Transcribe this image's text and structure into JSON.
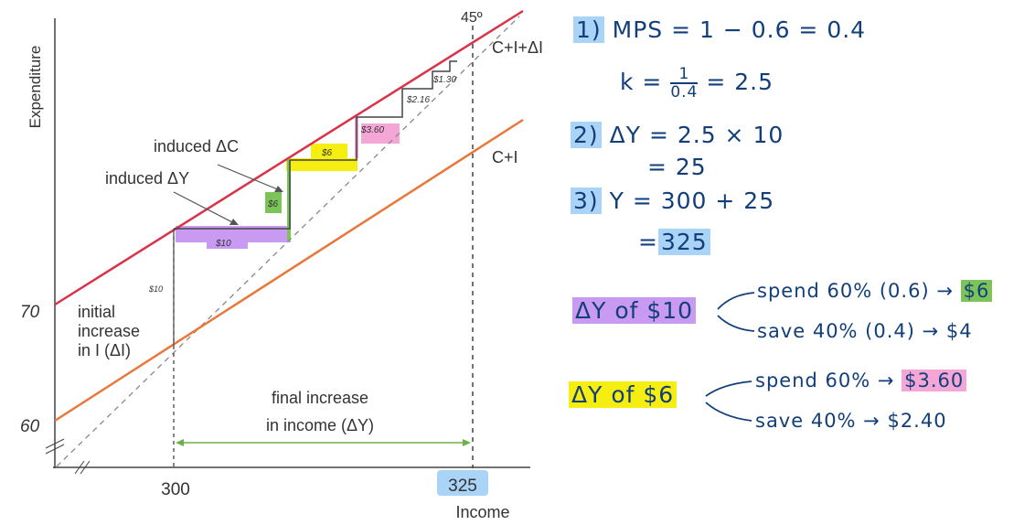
{
  "diagram": {
    "y_axis_label": "Expenditure",
    "x_axis_label": "Income",
    "y_ticks": [
      "70",
      "60"
    ],
    "x_ticks": [
      "300",
      "325"
    ],
    "angle_label": "45º",
    "line_labels": {
      "upper": "C+I+ΔI",
      "lower": "C+I"
    },
    "annotations": {
      "induced_c": "induced ΔC",
      "induced_y": "induced ΔY",
      "initial_1": "initial",
      "initial_2": "increase",
      "initial_3": "in I (ΔI)",
      "initial_amount": "$10",
      "final_1": "final increase",
      "final_2": "in income (ΔY)"
    },
    "steps": [
      "$10",
      "$6",
      "$6",
      "$3.60",
      "$2.16",
      "$1.30"
    ],
    "colors": {
      "upper_line": "#d9334a",
      "lower_line": "#e8773a",
      "purple": "#c89af2",
      "green": "#7cc45a",
      "yellow": "#f5ee10",
      "pink": "#f4a6d6",
      "blue": "#a9d4f7",
      "ink": "#123f7a"
    }
  },
  "notes": {
    "n1_num": "1)",
    "n1": "MPS = 1 − 0.6 = 0.4",
    "k_prefix": "k =",
    "k_num": "1",
    "k_den": "0.4",
    "k_result": "= 2.5",
    "n2_num": "2)",
    "n2": "ΔY = 2.5 × 10",
    "n2b": "= 25",
    "n3_num": "3)",
    "n3": "Y = 300 + 25",
    "n3b_eq": "=",
    "n3b": "325",
    "dy10": "ΔY of $10",
    "spend1": "spend 60% (0.6) →",
    "spend1_val": "$6",
    "save1": "save 40% (0.4) → $4",
    "dy6": "ΔY of $6",
    "spend2": "spend 60% →",
    "spend2_val": "$3.60",
    "save2": "save 40% → $2.40"
  }
}
